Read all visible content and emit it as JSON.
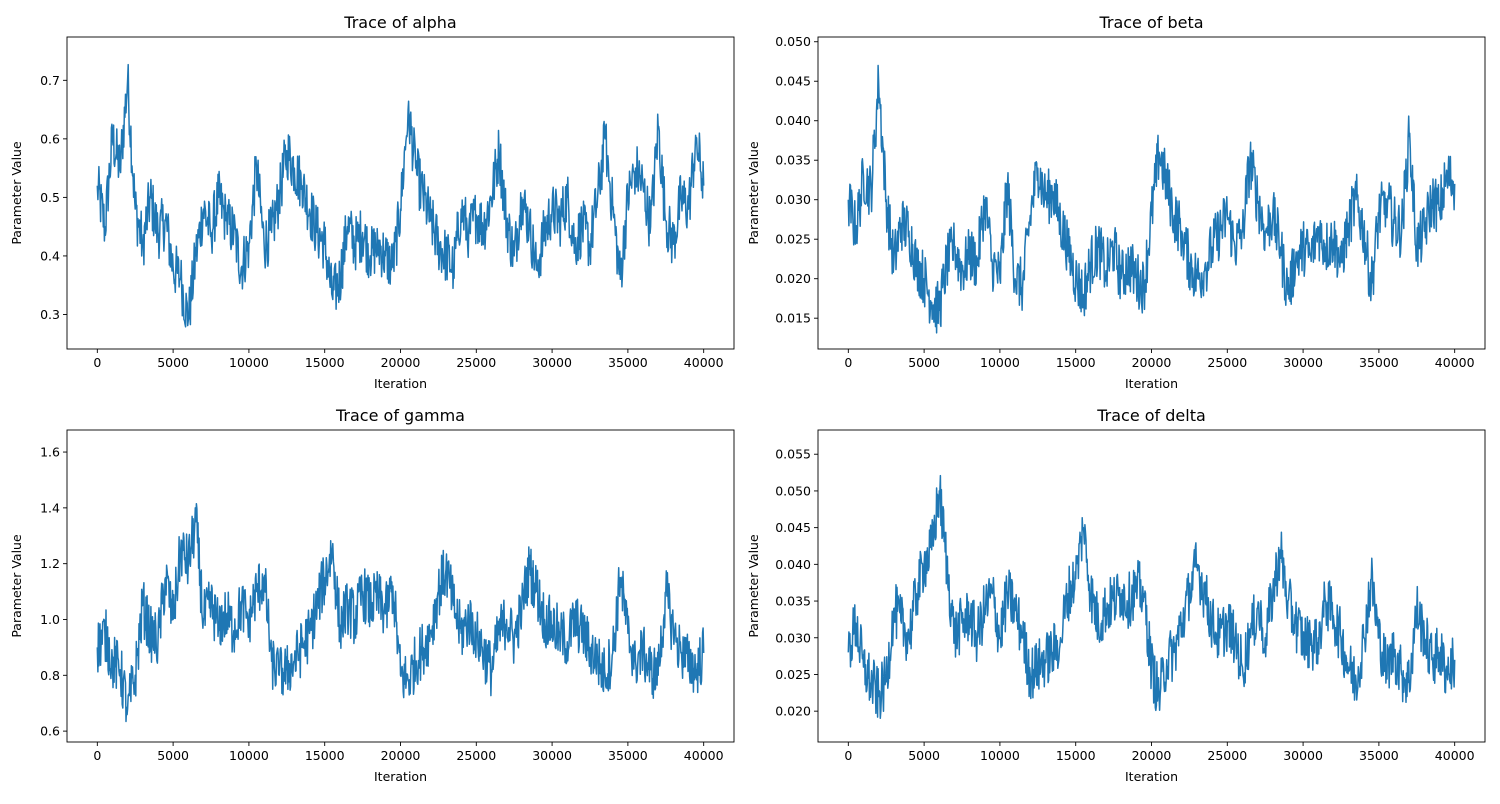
{
  "chart_data": [
    {
      "type": "line",
      "title": "Trace of alpha",
      "xlabel": "Iteration",
      "ylabel": "Parameter Value",
      "x_start": 0,
      "x_step": 500,
      "xlim": [
        -2000,
        42000
      ],
      "xticks": [
        0,
        5000,
        10000,
        15000,
        20000,
        25000,
        30000,
        35000,
        40000
      ],
      "ylim": [
        0.241,
        0.774
      ],
      "yticks": [
        "0.3",
        "0.4",
        "0.5",
        "0.6",
        "0.7"
      ],
      "grid": false,
      "color": "#1f77b4",
      "values": [
        0.52,
        0.45,
        0.6,
        0.55,
        0.7,
        0.48,
        0.42,
        0.5,
        0.44,
        0.46,
        0.38,
        0.36,
        0.29,
        0.4,
        0.48,
        0.44,
        0.5,
        0.46,
        0.44,
        0.38,
        0.42,
        0.55,
        0.42,
        0.44,
        0.5,
        0.58,
        0.55,
        0.52,
        0.48,
        0.44,
        0.42,
        0.33,
        0.36,
        0.45,
        0.42,
        0.44,
        0.4,
        0.42,
        0.4,
        0.38,
        0.48,
        0.65,
        0.55,
        0.5,
        0.46,
        0.42,
        0.4,
        0.38,
        0.48,
        0.44,
        0.47,
        0.45,
        0.5,
        0.58,
        0.46,
        0.4,
        0.5,
        0.45,
        0.38,
        0.44,
        0.48,
        0.46,
        0.5,
        0.42,
        0.45,
        0.42,
        0.5,
        0.6,
        0.48,
        0.36,
        0.5,
        0.55,
        0.52,
        0.45,
        0.62,
        0.46,
        0.42,
        0.5,
        0.48,
        0.6,
        0.52
      ]
    },
    {
      "type": "line",
      "title": "Trace of beta",
      "xlabel": "Iteration",
      "ylabel": "Parameter Value",
      "x_start": 0,
      "x_step": 500,
      "xlim": [
        -2000,
        42000
      ],
      "xticks": [
        0,
        5000,
        10000,
        15000,
        20000,
        25000,
        30000,
        35000,
        40000
      ],
      "ylim": [
        0.0111,
        0.0506
      ],
      "yticks": [
        "0.015",
        "0.020",
        "0.025",
        "0.030",
        "0.035",
        "0.040",
        "0.045",
        "0.050"
      ],
      "grid": false,
      "color": "#1f77b4",
      "values": [
        0.03,
        0.026,
        0.033,
        0.031,
        0.045,
        0.03,
        0.022,
        0.027,
        0.026,
        0.022,
        0.02,
        0.017,
        0.016,
        0.022,
        0.024,
        0.021,
        0.023,
        0.022,
        0.03,
        0.022,
        0.02,
        0.032,
        0.02,
        0.019,
        0.028,
        0.034,
        0.03,
        0.031,
        0.027,
        0.024,
        0.02,
        0.018,
        0.022,
        0.024,
        0.021,
        0.024,
        0.02,
        0.022,
        0.02,
        0.019,
        0.028,
        0.036,
        0.032,
        0.028,
        0.026,
        0.022,
        0.02,
        0.021,
        0.024,
        0.026,
        0.028,
        0.024,
        0.026,
        0.035,
        0.03,
        0.026,
        0.028,
        0.024,
        0.018,
        0.022,
        0.024,
        0.023,
        0.026,
        0.024,
        0.025,
        0.022,
        0.027,
        0.03,
        0.026,
        0.019,
        0.028,
        0.03,
        0.027,
        0.026,
        0.038,
        0.024,
        0.026,
        0.03,
        0.029,
        0.033,
        0.032
      ]
    },
    {
      "type": "line",
      "title": "Trace of gamma",
      "xlabel": "Iteration",
      "ylabel": "Parameter Value",
      "x_start": 0,
      "x_step": 500,
      "xlim": [
        -2000,
        42000
      ],
      "xticks": [
        0,
        5000,
        10000,
        15000,
        20000,
        25000,
        30000,
        35000,
        40000
      ],
      "ylim": [
        0.561,
        1.679
      ],
      "yticks": [
        "0.6",
        "0.8",
        "1.0",
        "1.2",
        "1.4",
        "1.6"
      ],
      "grid": false,
      "color": "#1f77b4",
      "values": [
        0.9,
        0.95,
        0.85,
        0.82,
        0.68,
        0.8,
        1.05,
        0.95,
        0.92,
        1.15,
        1.0,
        1.25,
        1.2,
        1.35,
        1.0,
        1.05,
        0.98,
        1.02,
        0.96,
        1.05,
        1.0,
        1.1,
        1.15,
        0.85,
        0.8,
        0.82,
        0.85,
        0.9,
        0.95,
        1.05,
        1.15,
        1.25,
        0.98,
        1.05,
        1.0,
        1.1,
        1.05,
        1.08,
        1.02,
        1.12,
        0.8,
        0.78,
        0.85,
        0.9,
        0.95,
        1.1,
        1.18,
        1.05,
        0.95,
        1.0,
        0.95,
        0.88,
        0.82,
        0.95,
        1.0,
        0.92,
        1.05,
        1.18,
        1.1,
        1.0,
        0.98,
        0.95,
        0.92,
        1.0,
        0.95,
        0.9,
        0.85,
        0.8,
        0.88,
        1.15,
        0.95,
        0.85,
        0.88,
        0.82,
        0.8,
        1.1,
        0.95,
        0.88,
        0.85,
        0.82,
        0.88
      ]
    },
    {
      "type": "line",
      "title": "Trace of delta",
      "xlabel": "Iteration",
      "ylabel": "Parameter Value",
      "x_start": 0,
      "x_step": 500,
      "xlim": [
        -2000,
        42000
      ],
      "xticks": [
        0,
        5000,
        10000,
        15000,
        20000,
        25000,
        30000,
        35000,
        40000
      ],
      "ylim": [
        0.0158,
        0.0583
      ],
      "yticks": [
        "0.020",
        "0.025",
        "0.030",
        "0.035",
        "0.040",
        "0.045",
        "0.050",
        "0.055"
      ],
      "grid": false,
      "color": "#1f77b4",
      "values": [
        0.028,
        0.032,
        0.026,
        0.024,
        0.022,
        0.024,
        0.034,
        0.032,
        0.03,
        0.036,
        0.04,
        0.042,
        0.05,
        0.04,
        0.03,
        0.032,
        0.033,
        0.03,
        0.034,
        0.036,
        0.03,
        0.036,
        0.034,
        0.03,
        0.025,
        0.026,
        0.027,
        0.028,
        0.03,
        0.036,
        0.038,
        0.045,
        0.036,
        0.032,
        0.034,
        0.035,
        0.036,
        0.035,
        0.037,
        0.036,
        0.026,
        0.022,
        0.027,
        0.028,
        0.032,
        0.036,
        0.04,
        0.036,
        0.032,
        0.03,
        0.032,
        0.03,
        0.026,
        0.03,
        0.034,
        0.03,
        0.036,
        0.042,
        0.035,
        0.032,
        0.03,
        0.029,
        0.03,
        0.035,
        0.033,
        0.03,
        0.026,
        0.024,
        0.03,
        0.038,
        0.03,
        0.026,
        0.028,
        0.025,
        0.024,
        0.034,
        0.03,
        0.027,
        0.028,
        0.025,
        0.027
      ]
    }
  ]
}
